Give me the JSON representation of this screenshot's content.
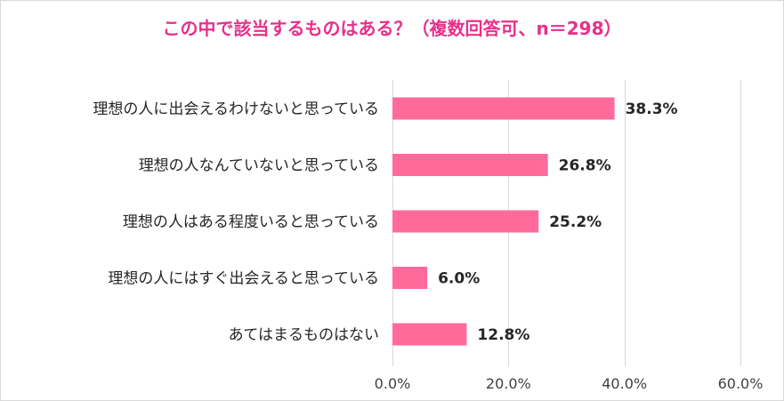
{
  "chart_data": {
    "type": "bar",
    "orientation": "horizontal",
    "title": "この中で該当するものはある？（複数回答可、n＝298）",
    "categories": [
      "理想の人に出会えるわけないと思っている",
      "理想の人なんていないと思っている",
      "理想の人はある程度いると思っている",
      "理想の人にはすぐ出会えると思っている",
      "あてはまるものはない"
    ],
    "values": [
      38.3,
      26.8,
      25.2,
      6.0,
      12.8
    ],
    "value_labels": [
      "38.3%",
      "26.8%",
      "25.2%",
      "6.0%",
      "12.8%"
    ],
    "xlim": [
      0,
      60
    ],
    "xticks": [
      0,
      20,
      40,
      60
    ],
    "xtick_labels": [
      "0.0%",
      "20.0%",
      "40.0%",
      "60.0%"
    ],
    "xlabel": "",
    "ylabel": "",
    "grid": true,
    "legend": "none",
    "colors": {
      "bar": "#ff6a9b",
      "title": "#e8308a",
      "grid": "#d9d9d9",
      "text": "#262626"
    }
  }
}
